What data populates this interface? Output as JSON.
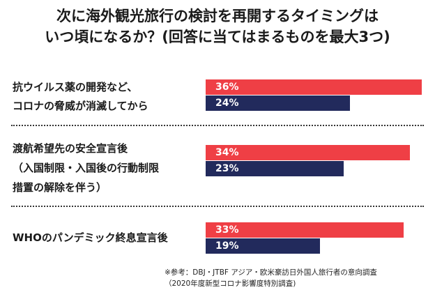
{
  "title": {
    "line1": "次に海外観光旅行の検討を再開するタイミングは",
    "line2": "いつ頃になるか？(回答に当てはまるものを最大3つ)"
  },
  "chart_data": {
    "type": "bar",
    "orientation": "horizontal",
    "xlim": [
      0,
      36
    ],
    "colors": [
      "#ef3f45",
      "#222a5c"
    ],
    "categories": [
      [
        "抗ウイルス薬の開発など、",
        "コロナの脅威が消滅してから"
      ],
      [
        "渡航希望先の安全宣言後",
        "（入国制限・入国後の行動制限",
        "措置の解除を伴う）"
      ],
      [
        "WHOのパンデミック終息宣言後"
      ]
    ],
    "series": [
      {
        "values": [
          36,
          34,
          33
        ],
        "labels": [
          "36%",
          "34%",
          "33%"
        ]
      },
      {
        "values": [
          24,
          23,
          19
        ],
        "labels": [
          "24%",
          "23%",
          "19%"
        ]
      }
    ]
  },
  "notes": {
    "line1": "※参考：DBJ・JTBF アジア・欧米豪訪日外国人旅行者の意向調査",
    "line2": "（2020年度新型コロナ影響度特別調査)"
  }
}
